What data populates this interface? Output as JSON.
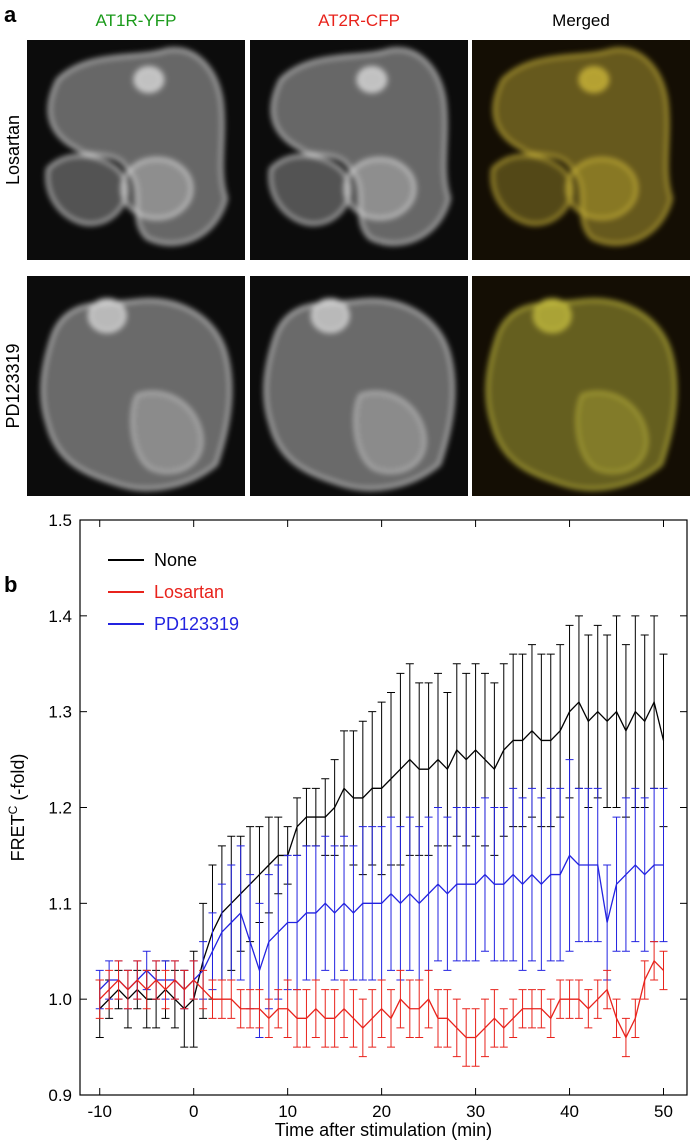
{
  "figure": {
    "panel_a_label": "a",
    "panel_b_label": "b",
    "columns": [
      {
        "title": "AT1R-YFP",
        "color": "#1a9a1a"
      },
      {
        "title": "AT2R-CFP",
        "color": "#e8231c"
      },
      {
        "title": "Merged",
        "color": "#000000"
      }
    ],
    "rows": [
      "Losartan",
      "PD123319"
    ]
  },
  "chart_data": {
    "type": "line",
    "x_label": "Time after stimulation (min)",
    "y_label": [
      "FRET",
      "C",
      " (-fold)"
    ],
    "xlim": [
      -12.1,
      52.5
    ],
    "ylim": [
      0.9,
      1.5
    ],
    "xticks": [
      -10,
      0,
      10,
      20,
      30,
      40,
      50
    ],
    "yticks": [
      0.9,
      {
        "value": 1,
        "label": "1.0"
      },
      1.1,
      1.2,
      1.3,
      1.4,
      1.5
    ],
    "legend": "upper left",
    "x": [
      -10,
      -9,
      -8,
      -7,
      -6,
      -5,
      -4,
      -3,
      -2,
      -1,
      0,
      1,
      2,
      3,
      4,
      5,
      6,
      7,
      8,
      9,
      10,
      11,
      12,
      13,
      14,
      15,
      16,
      17,
      18,
      19,
      20,
      21,
      22,
      23,
      24,
      25,
      26,
      27,
      28,
      29,
      30,
      31,
      32,
      33,
      34,
      35,
      36,
      37,
      38,
      39,
      40,
      41,
      42,
      43,
      44,
      45,
      46,
      47,
      48,
      49,
      50
    ],
    "series": [
      {
        "name": "None",
        "color": "#000000",
        "values": [
          0.99,
          1.0,
          1.01,
          1.0,
          1.01,
          1.0,
          1.0,
          1.01,
          1.0,
          0.99,
          1.0,
          1.04,
          1.07,
          1.09,
          1.1,
          1.11,
          1.12,
          1.13,
          1.14,
          1.15,
          1.15,
          1.18,
          1.19,
          1.19,
          1.19,
          1.2,
          1.22,
          1.21,
          1.21,
          1.22,
          1.22,
          1.23,
          1.24,
          1.25,
          1.24,
          1.24,
          1.25,
          1.24,
          1.26,
          1.25,
          1.26,
          1.25,
          1.24,
          1.26,
          1.27,
          1.27,
          1.28,
          1.27,
          1.27,
          1.28,
          1.3,
          1.31,
          1.29,
          1.3,
          1.29,
          1.3,
          1.28,
          1.3,
          1.29,
          1.31,
          1.27
        ],
        "errors": [
          0.03,
          0.02,
          0.02,
          0.03,
          0.02,
          0.03,
          0.03,
          0.03,
          0.03,
          0.04,
          0.05,
          0.06,
          0.07,
          0.07,
          0.07,
          0.06,
          0.06,
          0.05,
          0.05,
          0.04,
          0.03,
          0.03,
          0.03,
          0.03,
          0.04,
          0.05,
          0.06,
          0.07,
          0.08,
          0.08,
          0.09,
          0.09,
          0.1,
          0.1,
          0.09,
          0.09,
          0.09,
          0.08,
          0.09,
          0.09,
          0.09,
          0.09,
          0.09,
          0.09,
          0.09,
          0.09,
          0.09,
          0.09,
          0.09,
          0.09,
          0.09,
          0.09,
          0.09,
          0.09,
          0.09,
          0.1,
          0.09,
          0.1,
          0.09,
          0.09,
          0.09
        ]
      },
      {
        "name": "PD123319",
        "color": "#2323e0",
        "values": [
          1.01,
          1.02,
          1.02,
          1.01,
          1.02,
          1.03,
          1.02,
          1.02,
          1.02,
          1.01,
          1.02,
          1.03,
          1.05,
          1.07,
          1.08,
          1.09,
          1.06,
          1.03,
          1.06,
          1.07,
          1.08,
          1.08,
          1.09,
          1.09,
          1.1,
          1.09,
          1.1,
          1.09,
          1.1,
          1.1,
          1.1,
          1.11,
          1.1,
          1.11,
          1.1,
          1.11,
          1.12,
          1.11,
          1.12,
          1.12,
          1.12,
          1.13,
          1.12,
          1.12,
          1.13,
          1.12,
          1.13,
          1.12,
          1.13,
          1.13,
          1.15,
          1.14,
          1.14,
          1.14,
          1.08,
          1.12,
          1.13,
          1.14,
          1.13,
          1.14,
          1.14
        ],
        "errors": [
          0.02,
          0.02,
          0.02,
          0.02,
          0.02,
          0.02,
          0.02,
          0.02,
          0.02,
          0.02,
          0.02,
          0.03,
          0.04,
          0.05,
          0.06,
          0.07,
          0.07,
          0.07,
          0.07,
          0.07,
          0.07,
          0.07,
          0.07,
          0.07,
          0.07,
          0.07,
          0.07,
          0.07,
          0.08,
          0.08,
          0.08,
          0.08,
          0.08,
          0.08,
          0.08,
          0.08,
          0.08,
          0.08,
          0.08,
          0.08,
          0.08,
          0.08,
          0.08,
          0.08,
          0.09,
          0.09,
          0.09,
          0.09,
          0.09,
          0.09,
          0.1,
          0.08,
          0.08,
          0.08,
          0.06,
          0.07,
          0.08,
          0.08,
          0.08,
          0.08,
          0.08
        ]
      },
      {
        "name": "Losartan",
        "color": "#e8231c",
        "values": [
          1.0,
          1.01,
          1.02,
          1.01,
          1.02,
          1.01,
          1.02,
          1.01,
          1.02,
          1.01,
          1.02,
          1.01,
          1.0,
          1.0,
          1.0,
          0.99,
          0.99,
          0.99,
          0.98,
          0.99,
          0.99,
          0.98,
          0.98,
          0.99,
          0.98,
          0.98,
          0.99,
          0.98,
          0.97,
          0.98,
          0.99,
          0.98,
          1.0,
          0.99,
          0.99,
          1.0,
          0.98,
          0.98,
          0.97,
          0.96,
          0.96,
          0.97,
          0.98,
          0.97,
          0.98,
          0.99,
          0.99,
          0.99,
          0.98,
          1.0,
          1.0,
          1.0,
          0.99,
          1.0,
          1.01,
          0.98,
          0.96,
          0.98,
          1.02,
          1.04,
          1.03
        ],
        "errors": [
          0.02,
          0.02,
          0.02,
          0.02,
          0.02,
          0.02,
          0.02,
          0.02,
          0.02,
          0.02,
          0.02,
          0.02,
          0.02,
          0.02,
          0.02,
          0.02,
          0.02,
          0.02,
          0.02,
          0.02,
          0.03,
          0.03,
          0.03,
          0.03,
          0.03,
          0.03,
          0.03,
          0.03,
          0.03,
          0.03,
          0.03,
          0.03,
          0.03,
          0.03,
          0.03,
          0.03,
          0.03,
          0.03,
          0.03,
          0.03,
          0.03,
          0.03,
          0.03,
          0.02,
          0.02,
          0.02,
          0.02,
          0.02,
          0.02,
          0.02,
          0.02,
          0.02,
          0.02,
          0.02,
          0.02,
          0.02,
          0.02,
          0.02,
          0.02,
          0.02,
          0.02
        ]
      }
    ]
  }
}
